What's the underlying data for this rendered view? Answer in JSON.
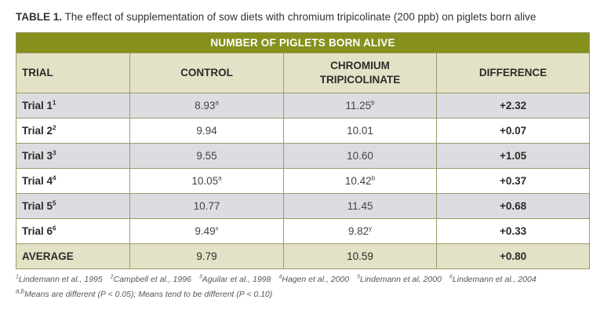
{
  "caption": {
    "label": "TABLE 1.",
    "text": "The effect of supplementation of sow diets with chromium tripicolinate (200 ppb) on piglets born alive"
  },
  "table": {
    "title": "NUMBER OF PIGLETS BORN ALIVE",
    "headers": [
      "TRIAL",
      "CONTROL",
      "CHROMIUM TRIPICOLINATE",
      "DIFFERENCE"
    ],
    "rows": [
      {
        "trial": "Trial 1",
        "ref": "1",
        "control": "8.93",
        "control_sup": "a",
        "chromium": "11.25",
        "chromium_sup": "b",
        "difference": "+2.32"
      },
      {
        "trial": "Trial 2",
        "ref": "2",
        "control": "9.94",
        "control_sup": "",
        "chromium": "10.01",
        "chromium_sup": "",
        "difference": "+0.07"
      },
      {
        "trial": "Trial 3",
        "ref": "3",
        "control": "9.55",
        "control_sup": "",
        "chromium": "10.60",
        "chromium_sup": "",
        "difference": "+1.05"
      },
      {
        "trial": "Trial 4",
        "ref": "4",
        "control": "10.05",
        "control_sup": "a",
        "chromium": "10.42",
        "chromium_sup": "b",
        "difference": "+0.37"
      },
      {
        "trial": "Trial 5",
        "ref": "5",
        "control": "10.77",
        "control_sup": "",
        "chromium": "11.45",
        "chromium_sup": "",
        "difference": "+0.68"
      },
      {
        "trial": "Trial 6",
        "ref": "6",
        "control": "9.49",
        "control_sup": "x",
        "chromium": "9.82",
        "chromium_sup": "y",
        "difference": "+0.33"
      }
    ],
    "average": {
      "label": "AVERAGE",
      "control": "9.79",
      "chromium": "10.59",
      "difference": "+0.80"
    }
  },
  "footnotes": {
    "references": [
      {
        "num": "1",
        "text": "Lindemann et al., 1995"
      },
      {
        "num": "2",
        "text": "Campbell et al., 1996"
      },
      {
        "num": "3",
        "text": "Aguilar et al., 1998"
      },
      {
        "num": "4",
        "text": "Hagen et al., 2000"
      },
      {
        "num": "5",
        "text": "Lindemann et al, 2000"
      },
      {
        "num": "6",
        "text": "Lindemann et al., 2004"
      }
    ],
    "significance_sup": "a,b",
    "significance": "Means are different (P < 0.05); Means tend to be different (P < 0.10)"
  },
  "colors": {
    "title_bar": "#86901c",
    "header_bg": "#e3e2c6",
    "stripe": "#dcdde0",
    "border": "#9a9a6a"
  }
}
